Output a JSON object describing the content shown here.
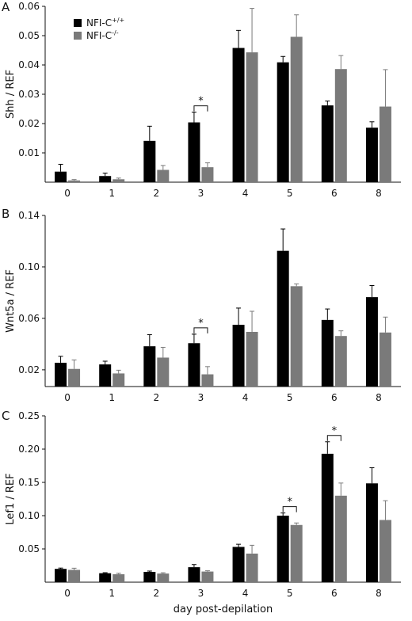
{
  "colors": {
    "wt": "#000000",
    "ko": "#7a7a7a",
    "axis": "#111111"
  },
  "legend": [
    {
      "label_main": "NFI-C",
      "label_sup": "+/+",
      "color": "#000000"
    },
    {
      "label_main": "NFI-C",
      "label_sup": "-/-",
      "color": "#7a7a7a"
    }
  ],
  "xlabel": "day post-depilation",
  "chart_data": [
    {
      "type": "bar",
      "panel": "A",
      "ylabel": "Shh / REF",
      "ylim": [
        0,
        0.06
      ],
      "yticks": [
        0.01,
        0.02,
        0.03,
        0.04,
        0.05,
        0.06
      ],
      "ytick_labels": [
        "0.01",
        "0.02",
        "0.03",
        "0.04",
        "0.05",
        "0.06"
      ],
      "categories": [
        "0",
        "1",
        "2",
        "3",
        "4",
        "5",
        "6",
        "8"
      ],
      "series": [
        {
          "name": "NFI-C+/+",
          "values": [
            0.0036,
            0.0021,
            0.0141,
            0.0204,
            0.0458,
            0.0409,
            0.0262,
            0.0186
          ],
          "errors": [
            0.0025,
            0.001,
            0.005,
            0.0035,
            0.006,
            0.002,
            0.0015,
            0.002
          ]
        },
        {
          "name": "NFI-C-/-",
          "values": [
            0.0006,
            0.001,
            0.0042,
            0.0051,
            0.0443,
            0.0496,
            0.0386,
            0.0258
          ],
          "errors": [
            0.0003,
            0.0004,
            0.0015,
            0.0015,
            0.015,
            0.0075,
            0.0046,
            0.0126
          ]
        }
      ],
      "significance": [
        {
          "category": "3",
          "label": "*"
        }
      ]
    },
    {
      "type": "bar",
      "panel": "B",
      "ylabel": "Wnt5a / REF",
      "ylim": [
        0.007,
        0.14
      ],
      "yticks": [
        0.02,
        0.06,
        0.1,
        0.14
      ],
      "ytick_labels": [
        "0.02",
        "0.06",
        "0.10",
        "0.14"
      ],
      "categories": [
        "0",
        "1",
        "2",
        "3",
        "4",
        "5",
        "6",
        "8"
      ],
      "series": [
        {
          "name": "NFI-C+/+",
          "values": [
            0.0255,
            0.0242,
            0.0383,
            0.0407,
            0.055,
            0.1125,
            0.0588,
            0.0765
          ],
          "errors": [
            0.005,
            0.0025,
            0.009,
            0.007,
            0.013,
            0.017,
            0.0085,
            0.009
          ]
        },
        {
          "name": "NFI-C-/-",
          "values": [
            0.0207,
            0.0172,
            0.0295,
            0.0165,
            0.0495,
            0.085,
            0.0463,
            0.049
          ],
          "errors": [
            0.007,
            0.0025,
            0.008,
            0.006,
            0.016,
            0.0018,
            0.004,
            0.012
          ]
        }
      ],
      "significance": [
        {
          "category": "3",
          "label": "*"
        }
      ]
    },
    {
      "type": "bar",
      "panel": "C",
      "ylabel": "Lef1 / REF",
      "ylim": [
        0,
        0.25
      ],
      "yticks": [
        0.05,
        0.1,
        0.15,
        0.2,
        0.25
      ],
      "ytick_labels": [
        "0.05",
        "0.10",
        "0.15",
        "0.20",
        "0.25"
      ],
      "categories": [
        "0",
        "1",
        "2",
        "3",
        "4",
        "5",
        "6",
        "8"
      ],
      "series": [
        {
          "name": "NFI-C+/+",
          "values": [
            0.02,
            0.0135,
            0.0155,
            0.0225,
            0.053,
            0.1,
            0.193,
            0.1485
          ],
          "errors": [
            0.0012,
            0.0008,
            0.0012,
            0.004,
            0.004,
            0.004,
            0.018,
            0.0235
          ]
        },
        {
          "name": "NFI-C-/-",
          "values": [
            0.0185,
            0.012,
            0.013,
            0.016,
            0.043,
            0.086,
            0.13,
            0.0935
          ],
          "errors": [
            0.0025,
            0.0015,
            0.0012,
            0.0012,
            0.0125,
            0.003,
            0.019,
            0.029
          ]
        }
      ],
      "significance": [
        {
          "category": "5",
          "label": "*"
        },
        {
          "category": "6",
          "label": "*"
        }
      ]
    }
  ]
}
